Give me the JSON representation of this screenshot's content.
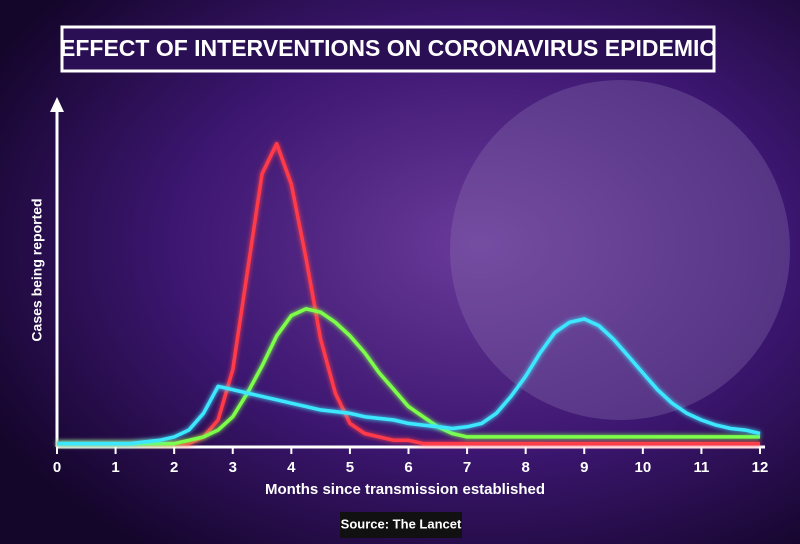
{
  "chart_data": {
    "type": "line",
    "title": "EFFECT OF INTERVENTIONS ON CORONAVIRUS EPIDEMIC",
    "y_label": "Cases being reported",
    "x_label": "Months since transmission established",
    "source": "Source: The Lancet",
    "x": [
      0,
      0.25,
      0.5,
      0.75,
      1,
      1.25,
      1.5,
      1.75,
      2,
      2.25,
      2.5,
      2.75,
      3,
      3.25,
      3.5,
      3.75,
      4,
      4.25,
      4.5,
      4.75,
      5,
      5.25,
      5.5,
      5.75,
      6,
      6.25,
      6.5,
      6.75,
      7,
      7.25,
      7.5,
      7.75,
      8,
      8.25,
      8.5,
      8.75,
      9,
      9.25,
      9.5,
      9.75,
      10,
      10.25,
      10.5,
      10.75,
      11,
      11.25,
      11.5,
      11.75,
      12
    ],
    "series": [
      {
        "color": "#ff3b4a",
        "values": [
          1,
          1,
          1,
          1,
          1,
          1,
          1,
          1,
          1,
          1,
          3,
          8,
          23,
          52,
          81,
          90,
          78,
          56,
          32,
          16,
          7,
          4,
          3,
          2,
          2,
          1,
          1,
          1,
          1,
          1,
          1,
          1,
          1,
          1,
          1,
          1,
          1,
          1,
          1,
          1,
          1,
          1,
          1,
          1,
          1,
          1,
          1,
          1,
          1
        ]
      },
      {
        "color": "#7dff4a",
        "values": [
          1,
          1,
          1,
          1,
          1,
          1,
          1,
          1,
          1,
          2,
          3,
          5,
          9,
          16,
          24,
          33,
          39,
          41,
          40,
          37,
          33,
          28,
          22,
          17,
          12,
          9,
          6,
          4,
          3,
          3,
          3,
          3,
          3,
          3,
          3,
          3,
          3,
          3,
          3,
          3,
          3,
          3,
          3,
          3,
          3,
          3,
          3,
          3,
          3
        ]
      },
      {
        "color": "#3ee8ff",
        "values": [
          1,
          1,
          1,
          1,
          1,
          1,
          1.5,
          2,
          3,
          5,
          10,
          18,
          17,
          16,
          15,
          14,
          13,
          12,
          11,
          10.5,
          10,
          9,
          8.5,
          8,
          7,
          6.5,
          6,
          5.5,
          6,
          7,
          10,
          15,
          21,
          28,
          34,
          37,
          38,
          36,
          32,
          27,
          22,
          17,
          13,
          10,
          8,
          6.5,
          5.5,
          5,
          4
        ]
      }
    ],
    "xlim": [
      0,
      12
    ],
    "xticks": [
      0,
      1,
      2,
      3,
      4,
      5,
      6,
      7,
      8,
      9,
      10,
      11,
      12
    ],
    "ylim": [
      0,
      100
    ]
  }
}
